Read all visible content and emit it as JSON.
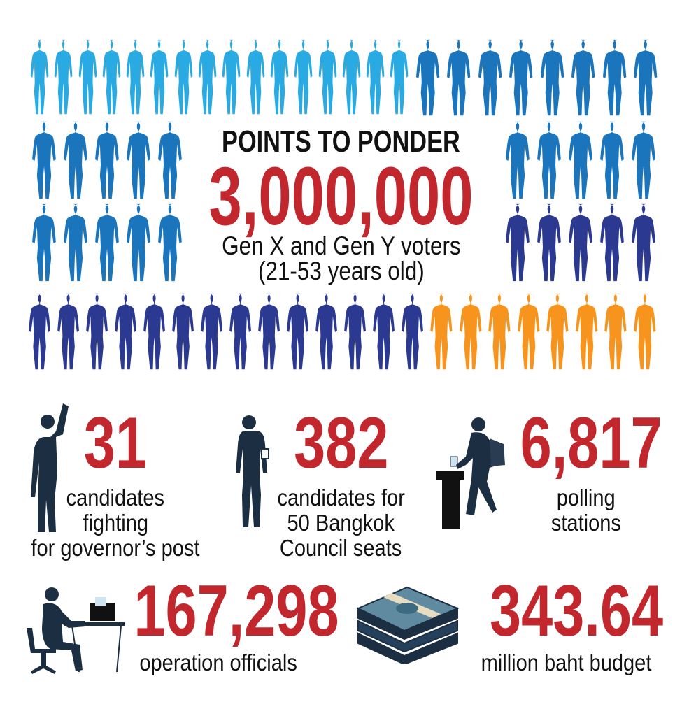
{
  "colors": {
    "light_blue": "#29aae2",
    "mid_blue": "#1b75bc",
    "dark_blue": "#2b3990",
    "orange": "#f7941d",
    "accent_red": "#c1272d",
    "silhouette": "#1c2e42"
  },
  "header": {
    "title": "POINTS TO PONDER",
    "number": "3,000,000",
    "line1": "Gen X and Gen Y voters",
    "line2": "(21-53 years old)"
  },
  "stats": [
    {
      "icon": "raised-fist-person-icon",
      "value": "31",
      "lines": [
        "candidates",
        "fighting",
        "for governor’s post"
      ]
    },
    {
      "icon": "standing-person-icon",
      "value": "382",
      "lines": [
        "candidates for",
        "50 Bangkok",
        "Council seats"
      ]
    },
    {
      "icon": "voter-ballot-box-icon",
      "value": "6,817",
      "lines": [
        "polling",
        "stations"
      ]
    },
    {
      "icon": "office-worker-desk-icon",
      "value": "167,298",
      "lines": [
        "operation officials"
      ]
    },
    {
      "icon": "money-stack-icon",
      "value": "343.64",
      "lines": [
        "million baht budget"
      ]
    }
  ]
}
